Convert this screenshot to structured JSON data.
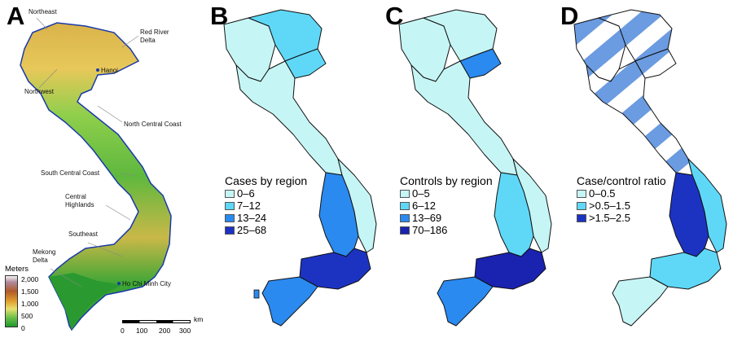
{
  "panels": {
    "a": {
      "letter": "A",
      "regions": {
        "northeast": "Northeast",
        "red_river_delta": "Red River Delta",
        "hanoi": "Hanoi",
        "northwest": "Northwest",
        "north_central_coast": "North Central Coast",
        "south_central_coast": "South Central Coast",
        "central_highlands": "Central Highlands",
        "southeast": "Southeast",
        "mekong_delta": "Mekong Delta",
        "ho_chi_minh_city": "Ho Chi Minh City"
      },
      "elevation_legend": {
        "title": "Meters",
        "ticks": [
          "2,000",
          "1,500",
          "1,000",
          "500",
          "0"
        ]
      },
      "scale_bar": {
        "unit": "km",
        "ticks": [
          "0",
          "100",
          "200",
          "300"
        ]
      }
    },
    "b": {
      "letter": "B",
      "legend_title": "Cases by region",
      "legend_items": [
        {
          "label": "0–6",
          "color": "#c6f5f5"
        },
        {
          "label": "7–12",
          "color": "#5fd8f8"
        },
        {
          "label": "13–24",
          "color": "#2a8af0"
        },
        {
          "label": "25–68",
          "color": "#1c33c2"
        }
      ]
    },
    "c": {
      "letter": "C",
      "legend_title": "Controls by region",
      "legend_items": [
        {
          "label": "0–5",
          "color": "#c6f5f5"
        },
        {
          "label": "6–12",
          "color": "#5fd8f8"
        },
        {
          "label": "13–69",
          "color": "#2a8af0"
        },
        {
          "label": "70–186",
          "color": "#1a22b0"
        }
      ]
    },
    "d": {
      "letter": "D",
      "legend_title": "Case/control ratio",
      "legend_items": [
        {
          "label": "0–0.5",
          "color": "#c6f5f5"
        },
        {
          "label": ">0.5–1.5",
          "color": "#5fd8f8"
        },
        {
          "label": ">1.5–2.5",
          "color": "#1c33c2"
        }
      ],
      "hatch_color": "#6b9be0"
    }
  }
}
